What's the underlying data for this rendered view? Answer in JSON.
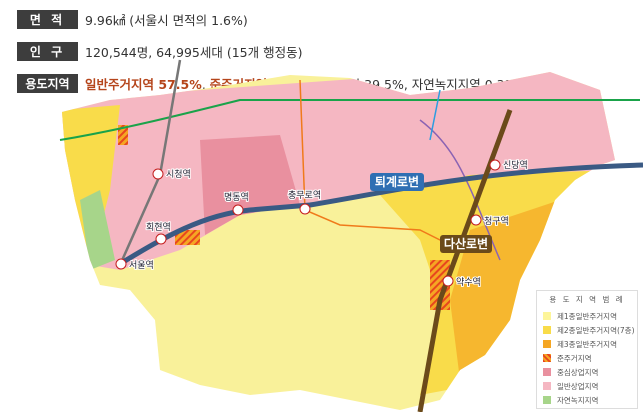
{
  "info": [
    {
      "label": "면 적",
      "value": "9.96㎢ (서울시 면적의 1.6%)"
    },
    {
      "label": "인 구",
      "value": "120,544명, 64,995세대 (15개 행정동)"
    },
    {
      "label": "용도지역",
      "parts": [
        {
          "text": "일반주거지역 57.5%",
          "highlight": true
        },
        {
          "text": ", ",
          "highlight": false
        },
        {
          "text": "준주거지역 2.7%",
          "highlight": true
        },
        {
          "text": ", 상업지역 39.5%, 자연녹지지역 0.3%",
          "highlight": false
        }
      ]
    }
  ],
  "map": {
    "stations": [
      "시청역",
      "회현역",
      "서울역",
      "명동역",
      "충무로역",
      "신당역",
      "청구역",
      "약수역"
    ],
    "roads": [
      "퇴계로변",
      "다산로변"
    ]
  },
  "legend": {
    "title": "용 도 지 역 범 례",
    "items": [
      {
        "label": "제1종일반주거지역",
        "color": "#fdf59a"
      },
      {
        "label": "제2종일반주거지역(7층)",
        "color": "#f9dc4a"
      },
      {
        "label": "제3종일반주거지역",
        "color": "#f5a623"
      },
      {
        "label": "준주거지역",
        "color": "#e8461e"
      },
      {
        "label": "중심상업지역",
        "color": "#e9909f"
      },
      {
        "label": "일반상업지역",
        "color": "#f5b7c2"
      },
      {
        "label": "자연녹지지역",
        "color": "#a7d58a"
      }
    ]
  }
}
